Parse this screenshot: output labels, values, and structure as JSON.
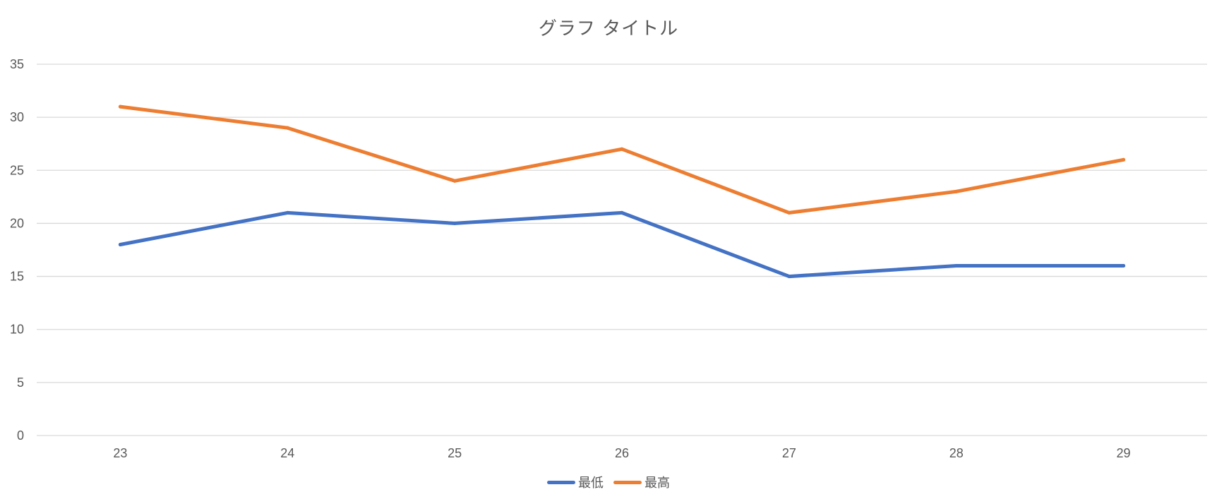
{
  "chart_data": {
    "type": "line",
    "title": "グラフ タイトル",
    "xlabel": "",
    "ylabel": "",
    "categories": [
      "23",
      "24",
      "25",
      "26",
      "27",
      "28",
      "29"
    ],
    "ylim": [
      0,
      35
    ],
    "yticks": [
      0,
      5,
      10,
      15,
      20,
      25,
      30,
      35
    ],
    "grid": true,
    "legend_position": "bottom",
    "series": [
      {
        "name": "最低",
        "color": "#4472C4",
        "values": [
          18,
          21,
          20,
          21,
          15,
          16,
          16
        ]
      },
      {
        "name": "最高",
        "color": "#ED7D31",
        "values": [
          31,
          29,
          24,
          27,
          21,
          23,
          26
        ]
      }
    ]
  }
}
